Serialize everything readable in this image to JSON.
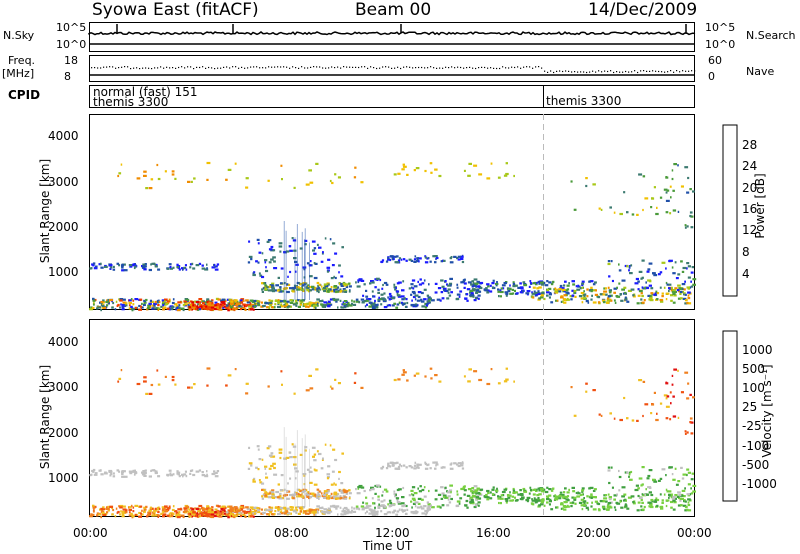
{
  "header": {
    "title": "Syowa East (fitACF)",
    "beam": "Beam 00",
    "date": "14/Dec/2009"
  },
  "top_panels": {
    "nsky_label": "N.Sky",
    "nsky_ticks": [
      "10^5",
      "10^0"
    ],
    "nsearch_label": "N.Search",
    "nsearch_ticks": [
      "10^5",
      "10^0"
    ],
    "freq_label": "Freq.",
    "freq_unit": "[MHz]",
    "freq_ticks": [
      "18",
      "8"
    ],
    "nave_label": "Nave",
    "nave_ticks": [
      "60",
      "0"
    ],
    "cpid_label": "CPID",
    "cpid_text_1": "normal (fast) 151",
    "cpid_text_2": "themis 3300",
    "cpid_text_3": "themis 3300"
  },
  "colors": {
    "power": [
      "#1a1aff",
      "#2050a8",
      "#3c7a70",
      "#4a9a3a",
      "#a8c818",
      "#f0c000",
      "#f08c00",
      "#f04000",
      "#e00000"
    ],
    "velocity": [
      "#1020c0",
      "#2a70c0",
      "#40a040",
      "#78d040",
      "#c0c0c0",
      "#f0c020",
      "#f08020",
      "#f05010",
      "#e01010"
    ]
  },
  "chart_data": [
    {
      "type": "heatmap",
      "name": "power",
      "ylabel": "Slant Range [km]",
      "yticks": [
        "4000",
        "3000",
        "2000",
        "1000"
      ],
      "ylim": [
        180,
        4500
      ],
      "xlim_hours": [
        0,
        24
      ],
      "colorbar_label": "Power [dB]",
      "colorbar_ticks": [
        "28",
        "24",
        "20",
        "16",
        "12",
        "8",
        "4"
      ],
      "colorbar_range": [
        0,
        32
      ]
    },
    {
      "type": "heatmap",
      "name": "velocity",
      "ylabel": "Slant Range [km]",
      "yticks": [
        "4000",
        "3000",
        "2000",
        "1000"
      ],
      "ylim": [
        180,
        4500
      ],
      "xlim_hours": [
        0,
        24
      ],
      "colorbar_label": "Velocity [m s⁻¹]",
      "colorbar_ticks": [
        "1000",
        "500",
        "100",
        "25",
        "-25",
        "-100",
        "-500",
        "-1000"
      ]
    }
  ],
  "xaxis": {
    "ticks": [
      "00:00",
      "04:00",
      "08:00",
      "12:00",
      "16:00",
      "20:00",
      "00:00"
    ],
    "label": "Time UT"
  }
}
